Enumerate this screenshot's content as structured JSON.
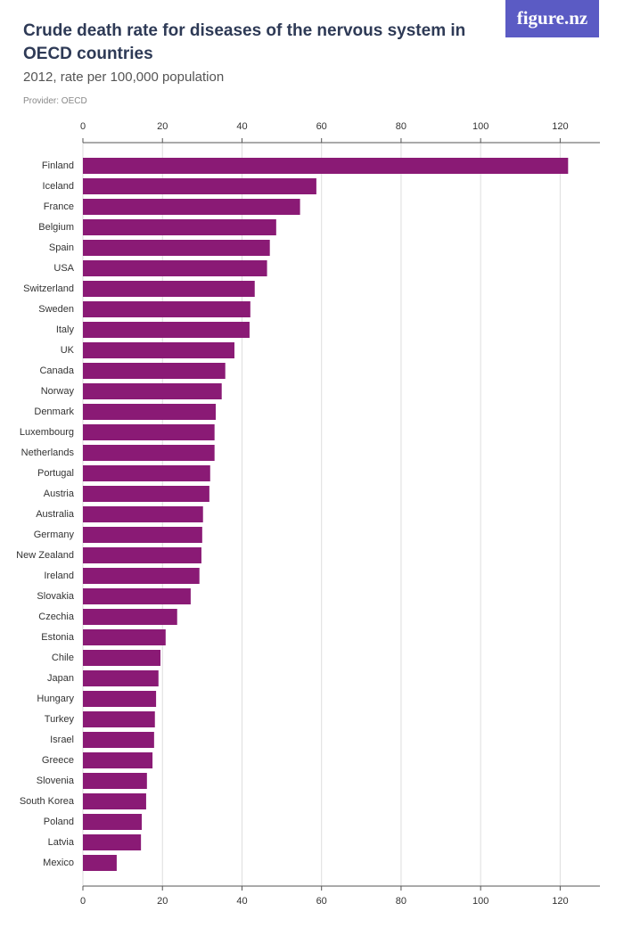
{
  "logo": "figure.nz",
  "chart_data": {
    "type": "bar",
    "orientation": "horizontal",
    "title": "Crude death rate for diseases of the nervous system in OECD countries",
    "subtitle": "2012, rate per 100,000 population",
    "provider": "Provider: OECD",
    "categories": [
      "Finland",
      "Iceland",
      "France",
      "Belgium",
      "Spain",
      "USA",
      "Switzerland",
      "Sweden",
      "Italy",
      "UK",
      "Canada",
      "Norway",
      "Denmark",
      "Luxembourg",
      "Netherlands",
      "Portugal",
      "Austria",
      "Australia",
      "Germany",
      "New Zealand",
      "Ireland",
      "Slovakia",
      "Czechia",
      "Estonia",
      "Chile",
      "Japan",
      "Hungary",
      "Turkey",
      "Israel",
      "Greece",
      "Slovenia",
      "South Korea",
      "Poland",
      "Latvia",
      "Mexico"
    ],
    "values": [
      122.0,
      58.7,
      54.6,
      48.6,
      47.0,
      46.3,
      43.2,
      42.1,
      41.9,
      38.1,
      35.8,
      34.9,
      33.4,
      33.1,
      33.1,
      32.0,
      31.8,
      30.2,
      30.0,
      29.8,
      29.3,
      27.1,
      23.7,
      20.8,
      19.5,
      19.0,
      18.4,
      18.1,
      17.9,
      17.5,
      16.1,
      15.9,
      14.8,
      14.6,
      8.5
    ],
    "color": "#8a1a75",
    "xlim": [
      0,
      130
    ],
    "xticks": [
      0,
      20,
      40,
      60,
      80,
      100,
      120
    ],
    "grid": true
  }
}
